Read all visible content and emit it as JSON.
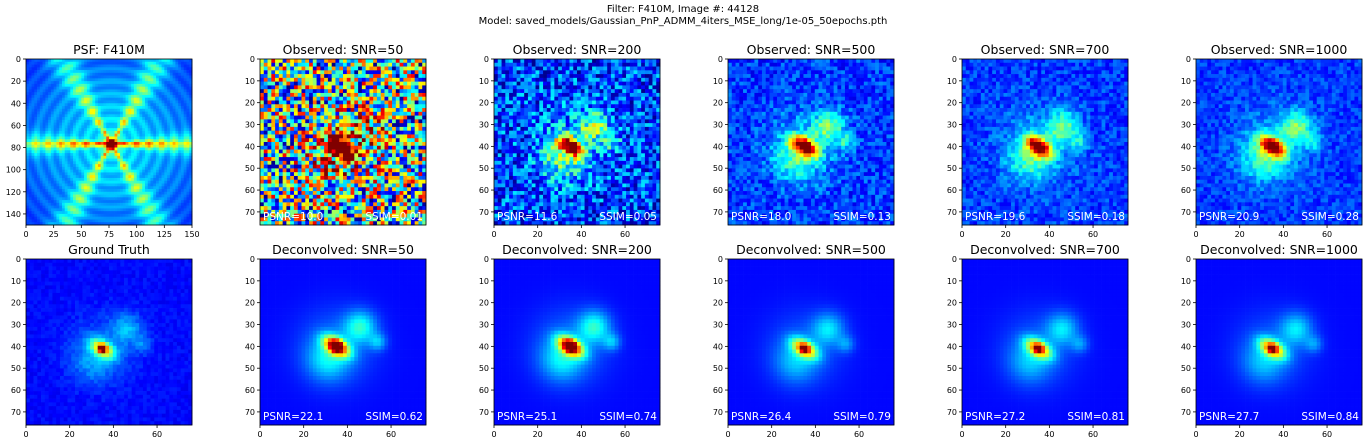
{
  "suptitle": {
    "line1": "Filter: F410M, Image #: 44128",
    "line2": "Model: saved_models/Gaussian_PnP_ADMM_4iters_MSE_long/1e-05_50epochs.pth"
  },
  "chart_data": [
    {
      "type": "heatmap",
      "title": "PSF: F410M",
      "kind": "psf",
      "size": 150,
      "xticks": [
        0,
        25,
        50,
        75,
        100,
        125,
        150
      ],
      "yticks": [
        0,
        20,
        40,
        60,
        80,
        100,
        120,
        140
      ],
      "center": [
        77,
        77
      ],
      "psnr": "",
      "ssim": ""
    },
    {
      "type": "heatmap",
      "title": "Observed: SNR=50",
      "kind": "observed",
      "snr": 50,
      "size": 76,
      "xticks": [],
      "yticks": [
        0,
        10,
        20,
        30,
        40,
        50,
        60,
        70
      ],
      "center": [
        37,
        41
      ],
      "psnr": "PSNR=10.0",
      "ssim": "SSIM=0.01"
    },
    {
      "type": "heatmap",
      "title": "Observed: SNR=200",
      "kind": "observed",
      "snr": 200,
      "size": 76,
      "xticks": [
        0,
        20,
        40,
        60
      ],
      "yticks": [
        0,
        10,
        20,
        30,
        40,
        50,
        60,
        70
      ],
      "center": [
        35,
        40
      ],
      "psnr": "PSNR=11.6",
      "ssim": "SSIM=0.05"
    },
    {
      "type": "heatmap",
      "title": "Observed: SNR=500",
      "kind": "observed",
      "snr": 500,
      "size": 76,
      "xticks": [],
      "yticks": [
        0,
        10,
        20,
        30,
        40,
        50,
        60,
        70
      ],
      "center": [
        35,
        40
      ],
      "psnr": "PSNR=18.0",
      "ssim": "SSIM=0.13"
    },
    {
      "type": "heatmap",
      "title": "Observed: SNR=700",
      "kind": "observed",
      "snr": 700,
      "size": 76,
      "xticks": [
        0,
        20,
        40,
        60
      ],
      "yticks": [
        0,
        10,
        20,
        30,
        40,
        50,
        60,
        70
      ],
      "center": [
        35,
        40
      ],
      "psnr": "PSNR=19.6",
      "ssim": "SSIM=0.18"
    },
    {
      "type": "heatmap",
      "title": "Observed: SNR=1000",
      "kind": "observed",
      "snr": 1000,
      "size": 76,
      "xticks": [
        0,
        20,
        40,
        60
      ],
      "yticks": [
        0,
        10,
        20,
        30,
        40,
        50,
        60,
        70
      ],
      "center": [
        35,
        40
      ],
      "psnr": "PSNR=20.9",
      "ssim": "SSIM=0.28"
    },
    {
      "type": "heatmap",
      "title": "Ground Truth",
      "kind": "truth",
      "size": 76,
      "xticks": [
        0,
        20,
        40,
        60
      ],
      "yticks": [
        0,
        10,
        20,
        30,
        40,
        50,
        60,
        70
      ],
      "center": [
        35,
        41
      ],
      "psnr": "",
      "ssim": ""
    },
    {
      "type": "heatmap",
      "title": "Deconvolved: SNR=50",
      "kind": "deconv",
      "snr": 50,
      "size": 76,
      "xticks": [
        0,
        20,
        40,
        60
      ],
      "yticks": [
        0,
        10,
        20,
        30,
        40,
        50,
        60,
        70
      ],
      "center": [
        35,
        40
      ],
      "psnr": "PSNR=22.1",
      "ssim": "SSIM=0.62"
    },
    {
      "type": "heatmap",
      "title": "Deconvolved: SNR=200",
      "kind": "deconv",
      "snr": 200,
      "size": 76,
      "xticks": [
        0,
        20,
        40,
        60
      ],
      "yticks": [
        0,
        10,
        20,
        30,
        40,
        50,
        60,
        70
      ],
      "center": [
        35,
        40
      ],
      "psnr": "PSNR=25.1",
      "ssim": "SSIM=0.74"
    },
    {
      "type": "heatmap",
      "title": "Deconvolved: SNR=500",
      "kind": "deconv",
      "snr": 500,
      "size": 76,
      "xticks": [
        0,
        20,
        40,
        60
      ],
      "yticks": [
        0,
        10,
        20,
        30,
        40,
        50,
        60,
        70
      ],
      "center": [
        35,
        41
      ],
      "psnr": "PSNR=26.4",
      "ssim": "SSIM=0.79"
    },
    {
      "type": "heatmap",
      "title": "Deconvolved: SNR=700",
      "kind": "deconv",
      "snr": 700,
      "size": 76,
      "xticks": [
        0,
        20,
        40,
        60
      ],
      "yticks": [
        0,
        10,
        20,
        30,
        40,
        50,
        60,
        70
      ],
      "center": [
        35,
        41
      ],
      "psnr": "PSNR=27.2",
      "ssim": "SSIM=0.81"
    },
    {
      "type": "heatmap",
      "title": "Deconvolved: SNR=1000",
      "kind": "deconv",
      "snr": 1000,
      "size": 76,
      "xticks": [
        0,
        20,
        40,
        60
      ],
      "yticks": [
        0,
        10,
        20,
        30,
        40,
        50,
        60,
        70
      ],
      "center": [
        35,
        41
      ],
      "psnr": "PSNR=27.7",
      "ssim": "SSIM=0.84"
    }
  ],
  "colormap": "jet"
}
